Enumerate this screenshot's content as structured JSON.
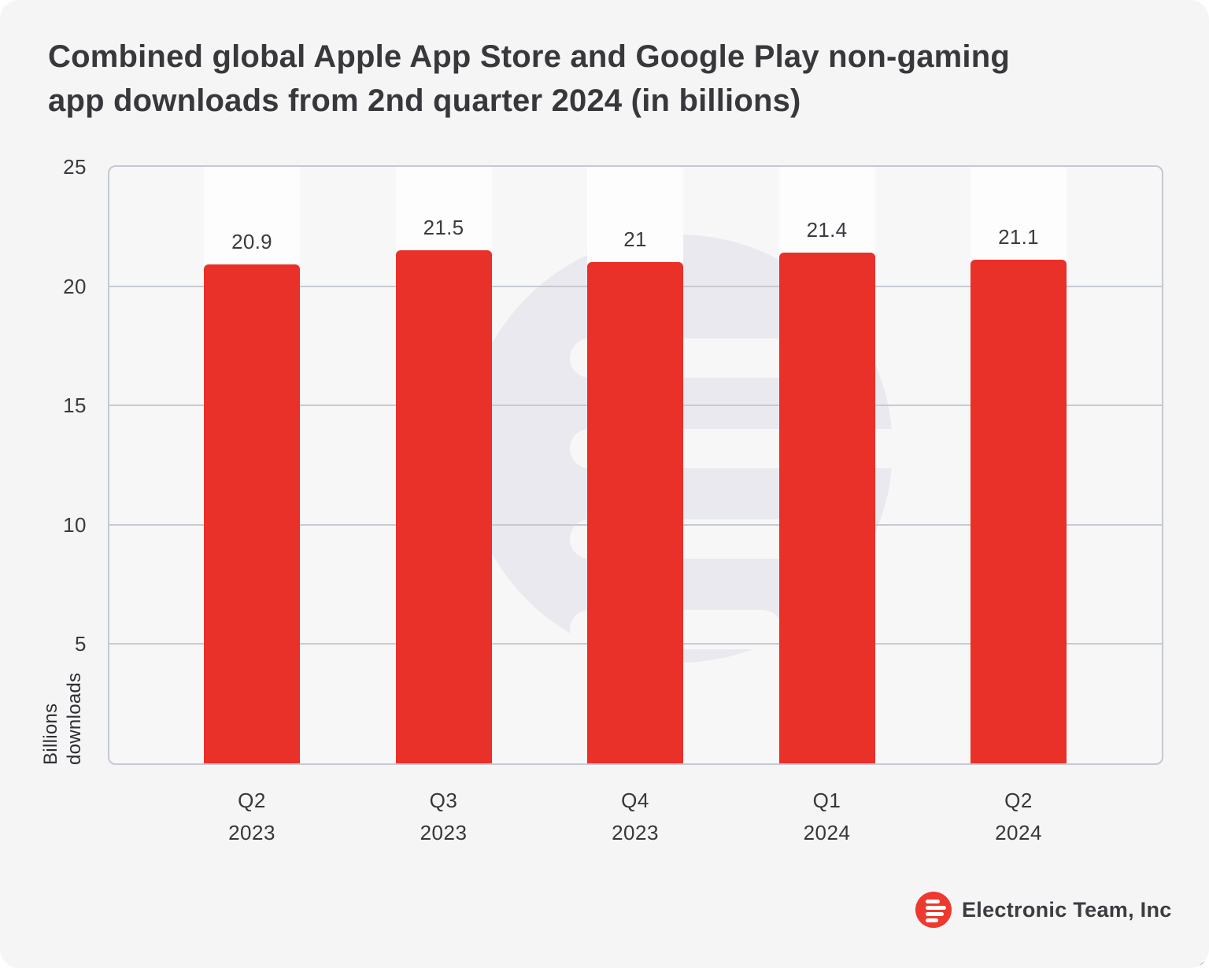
{
  "title": {
    "full": "Combined global Apple App Store and Google Play non-gaming app downloads from 2nd quarter 2024 (in billions)",
    "line1": "Combined global Apple App Store and Google Play non-gaming",
    "line2": "app downloads from 2nd quarter 2024 (in billions)"
  },
  "chart_data": {
    "type": "bar",
    "title": "Combined global Apple App Store and Google Play non-gaming app downloads from 2nd quarter 2024 (in billions)",
    "categories": [
      "Q2 2023",
      "Q3 2023",
      "Q4 2023",
      "Q1 2024",
      "Q2 2024"
    ],
    "category_lines": [
      [
        "Q2",
        "2023"
      ],
      [
        "Q3",
        "2023"
      ],
      [
        "Q4",
        "2023"
      ],
      [
        "Q1",
        "2024"
      ],
      [
        "Q2",
        "2024"
      ]
    ],
    "values": [
      20.9,
      21.5,
      21,
      21.4,
      21.1
    ],
    "value_labels": [
      "20.9",
      "21.5",
      "21",
      "21.4",
      "21.1"
    ],
    "xlabel": "",
    "ylabel": "Billions downloads",
    "ylabel_lines": [
      "Billions",
      "downloads"
    ],
    "yticks": [
      25,
      20,
      15,
      10,
      5
    ],
    "ylim": [
      0,
      25
    ],
    "grid": true,
    "legend": false,
    "bar_color": "#e93029"
  },
  "branding": {
    "company": "Electronic Team, Inc",
    "logo": "electronic-team-logo",
    "logo_color": "#ee392e"
  }
}
